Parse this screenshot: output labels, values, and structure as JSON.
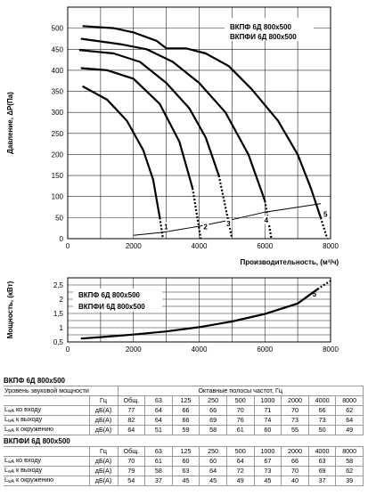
{
  "chart_data": [
    {
      "type": "line",
      "xlabel": "Производительность, (м³/ч)",
      "ylabel": "Давление, ΔP(Па)",
      "xlim": [
        0,
        8000
      ],
      "ylim": [
        0,
        550
      ],
      "xticks": [
        "0",
        "2000",
        "4000",
        "6000",
        "8000"
      ],
      "yticks": [
        "0",
        "50",
        "100",
        "150",
        "200",
        "250",
        "300",
        "350",
        "400",
        "450",
        "500"
      ],
      "grid": true,
      "legend": [
        "ВКПФ 6Д 800х500",
        "ВКПФИ 6Д 800х500"
      ],
      "series": [
        {
          "name": "1",
          "x": [
            450,
            1200,
            1800,
            2300,
            2600,
            2800,
            2900
          ],
          "y": [
            362,
            330,
            280,
            210,
            140,
            50,
            0
          ]
        },
        {
          "name": "2",
          "x": [
            400,
            1200,
            2000,
            2800,
            3400,
            3800,
            4050
          ],
          "y": [
            405,
            400,
            380,
            320,
            230,
            120,
            0
          ]
        },
        {
          "name": "3",
          "x": [
            350,
            1400,
            2200,
            3000,
            3700,
            4200,
            4600,
            5000
          ],
          "y": [
            448,
            440,
            420,
            370,
            310,
            240,
            150,
            0
          ]
        },
        {
          "name": "4",
          "x": [
            400,
            1600,
            2400,
            3200,
            4000,
            4800,
            5500,
            6000,
            6200
          ],
          "y": [
            475,
            462,
            450,
            420,
            370,
            300,
            200,
            90,
            0
          ]
        },
        {
          "name": "5",
          "x": [
            450,
            1400,
            2000,
            2700,
            3000,
            3600,
            4200,
            4900,
            5600,
            6400,
            7000,
            7400,
            7700,
            7900
          ],
          "y": [
            505,
            500,
            490,
            470,
            452,
            452,
            440,
            410,
            355,
            280,
            200,
            120,
            50,
            0
          ]
        },
        {
          "name": "system",
          "x": [
            2000,
            2900,
            4050,
            5000,
            6000,
            7700
          ],
          "y": [
            8,
            15,
            30,
            45,
            63,
            83
          ]
        }
      ],
      "curve_labels": [
        "1",
        "2",
        "3",
        "4",
        "5"
      ]
    },
    {
      "type": "line",
      "xlabel": "",
      "ylabel": "Мощность, (кВт)",
      "xlim": [
        0,
        8000
      ],
      "ylim": [
        0.5,
        2.75
      ],
      "xticks": [
        "0",
        "2000",
        "4000",
        "6000",
        "8000"
      ],
      "yticks": [
        "0,5",
        "1",
        "1,5",
        "2",
        "2,5"
      ],
      "grid": true,
      "legend": [
        "ВКПФ 6Д 800х500",
        "ВКПФИ 6Д 800х500"
      ],
      "series": [
        {
          "name": "5",
          "x": [
            400,
            1000,
            2000,
            3000,
            4000,
            5000,
            6000,
            7000,
            7600,
            8000
          ],
          "y": [
            0.62,
            0.67,
            0.76,
            0.87,
            1.02,
            1.22,
            1.48,
            1.85,
            2.35,
            2.65
          ]
        }
      ],
      "curve_labels": [
        "5"
      ]
    }
  ],
  "tables": [
    {
      "title": "ВКПФ 6Д 800х500",
      "header_left": "Уровень звуковой мощности",
      "header_right": "Октавные полосы частот, Гц",
      "unit_col": "Гц",
      "columns": [
        "Общ.",
        "63",
        "125",
        "250",
        "500",
        "1000",
        "2000",
        "4000",
        "8000"
      ],
      "rows": [
        {
          "sub": "wA",
          "label": " ко входу",
          "unit": "дБ(А)",
          "values": [
            "77",
            "64",
            "66",
            "66",
            "70",
            "71",
            "70",
            "66",
            "62"
          ]
        },
        {
          "sub": "wA",
          "label": " к выходу",
          "unit": "дБ(А)",
          "values": [
            "82",
            "64",
            "66",
            "69",
            "76",
            "74",
            "73",
            "73",
            "64"
          ]
        },
        {
          "sub": "wA",
          "label": " к окружению",
          "unit": "дБ(А)",
          "values": [
            "64",
            "51",
            "59",
            "58",
            "61",
            "60",
            "55",
            "50",
            "49"
          ]
        }
      ]
    },
    {
      "title": "ВКПФИ 6Д 800х500",
      "unit_col": "Гц",
      "columns": [
        "Общ.",
        "63",
        "125",
        "250",
        "500",
        "1000",
        "2000",
        "4000",
        "8000"
      ],
      "rows": [
        {
          "sub": "wA",
          "label": " ко входу",
          "unit": "дБ(А)",
          "values": [
            "70",
            "61",
            "60",
            "60",
            "64",
            "67",
            "66",
            "63",
            "58"
          ]
        },
        {
          "sub": "wA",
          "label": " к выходу",
          "unit": "дБ(А)",
          "values": [
            "79",
            "58",
            "63",
            "64",
            "72",
            "73",
            "70",
            "69",
            "62"
          ]
        },
        {
          "sub": "wA",
          "label": " к окружению",
          "unit": "дБ(А)",
          "values": [
            "54",
            "37",
            "45",
            "45",
            "49",
            "45",
            "40",
            "37",
            "39"
          ]
        }
      ]
    }
  ]
}
